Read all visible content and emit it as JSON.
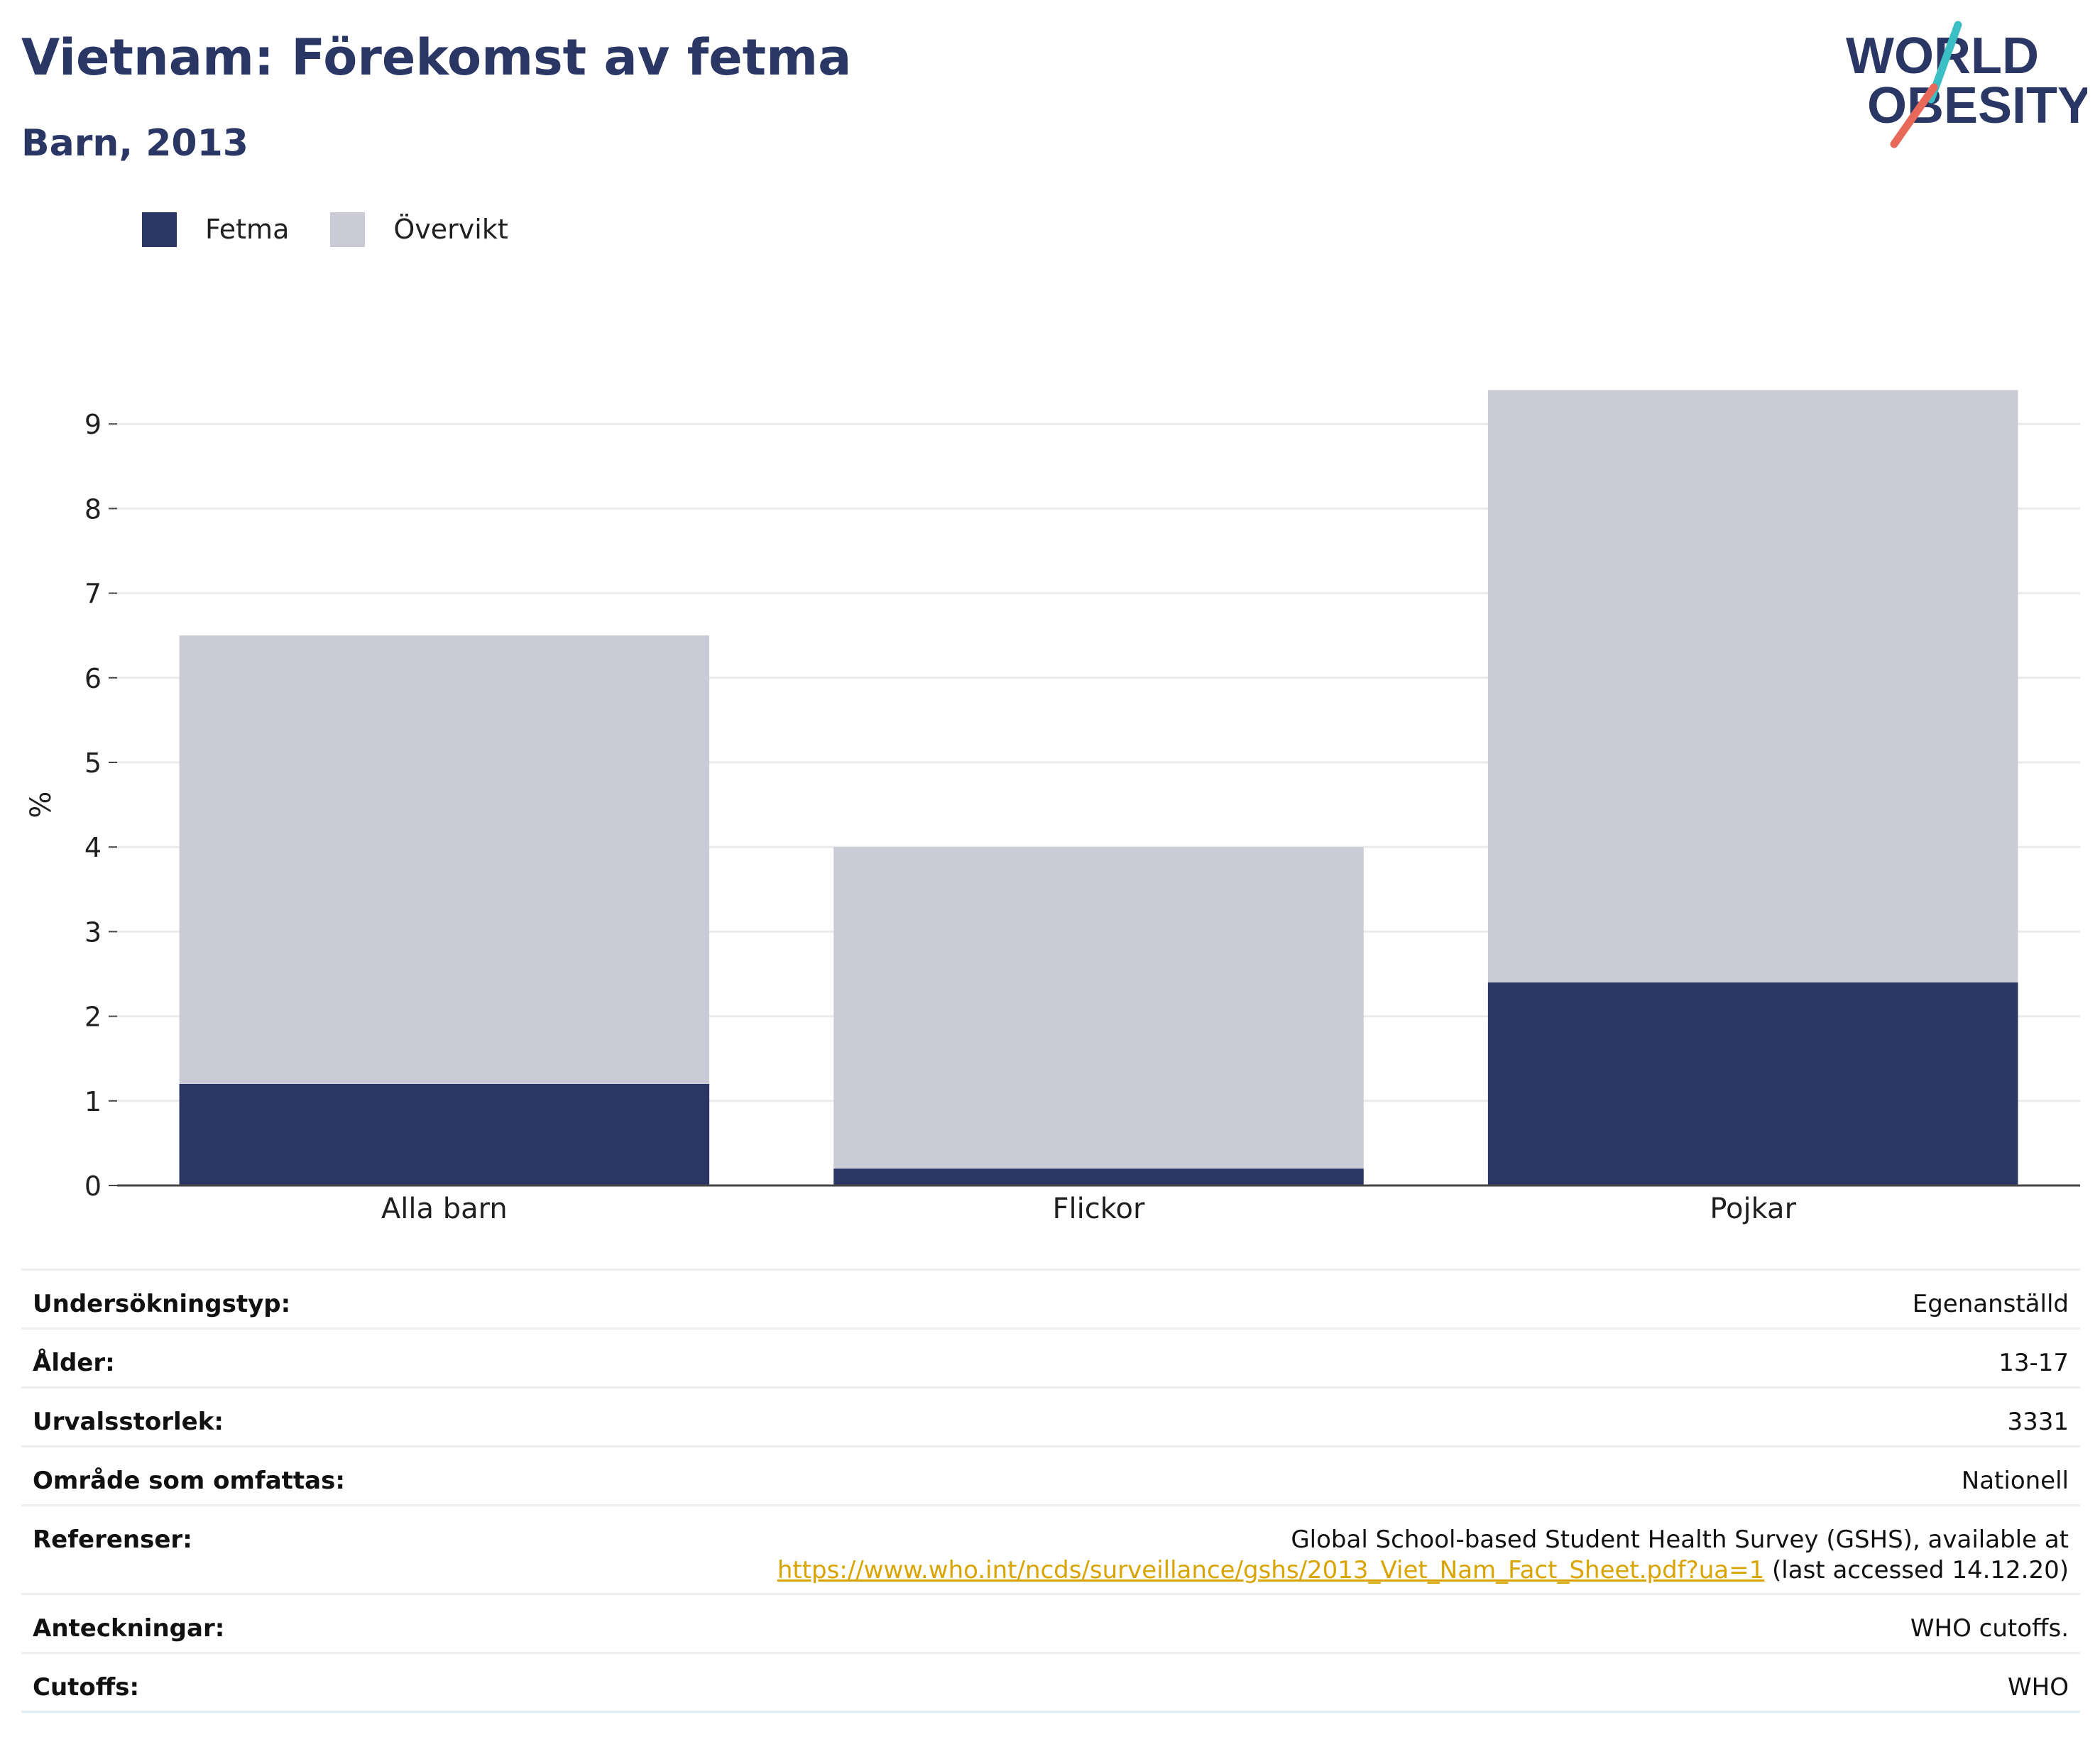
{
  "header": {
    "title": "Vietnam: Förekomst av fetma",
    "subtitle": "Barn, 2013"
  },
  "logo": {
    "line1": "WORLD",
    "line2": "OBESITY",
    "colors": {
      "navy": "#2a3663",
      "teal": "#3bbfc4",
      "coral": "#e8685a"
    }
  },
  "legend": [
    {
      "label": "Fetma",
      "color": "#2a3663"
    },
    {
      "label": "Övervikt",
      "color": "#cacbd6"
    }
  ],
  "chart_data": {
    "type": "bar",
    "stacked": true,
    "categories": [
      "Alla barn",
      "Flickor",
      "Pojkar"
    ],
    "series": [
      {
        "name": "Fetma",
        "color": "#2a3663",
        "values": [
          1.2,
          0.2,
          2.4
        ]
      },
      {
        "name": "Övervikt",
        "color": "#cacbd6",
        "values": [
          5.3,
          3.8,
          7.0
        ]
      }
    ],
    "ylabel": "%",
    "ylim": [
      0,
      9.3
    ],
    "yticks": [
      0,
      1,
      2,
      3,
      4,
      5,
      6,
      7,
      8,
      9
    ],
    "grid": true,
    "legend_position": "top-left"
  },
  "table": {
    "rows": [
      {
        "label": "Undersökningstyp:",
        "value": "Egenanställd"
      },
      {
        "label": "Ålder:",
        "value": "13-17"
      },
      {
        "label": "Urvalsstorlek:",
        "value": "3331"
      },
      {
        "label": "Område som omfattas:",
        "value": "Nationell"
      },
      {
        "label": "Anteckningar:",
        "value": "WHO cutoffs."
      },
      {
        "label": "Cutoffs:",
        "value": "WHO"
      }
    ],
    "reference": {
      "label": "Referenser:",
      "text_before": "Global School-based Student Health Survey (GSHS), available at",
      "link": "https://www.who.int/ncds/surveillance/gshs/2013_Viet_Nam_Fact_Sheet.pdf?ua=1",
      "text_after": " (last accessed 14.12.20)"
    }
  }
}
